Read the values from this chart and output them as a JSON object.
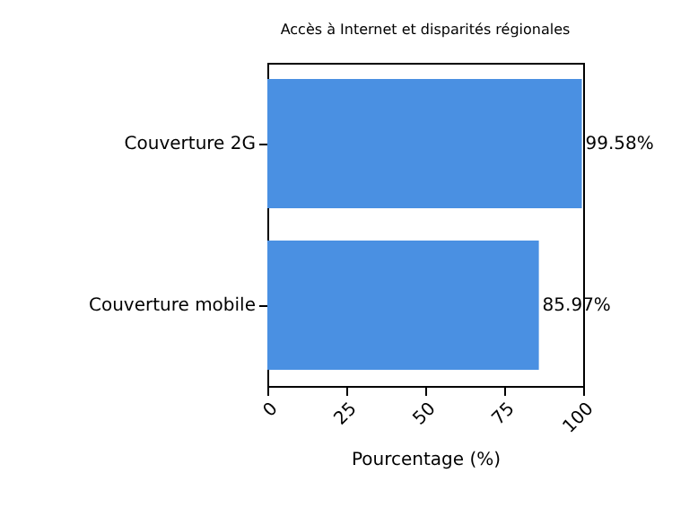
{
  "chart_data": {
    "type": "bar",
    "orientation": "horizontal",
    "title": "Accès à Internet et disparités régionales",
    "xlabel": "Pourcentage (%)",
    "categories": [
      "Couverture 2G",
      "Couverture mobile"
    ],
    "values": [
      99.58,
      85.97
    ],
    "color": "#4a90e2",
    "value_labels": [
      "99.58%",
      "85.97%"
    ],
    "xlim": [
      0,
      100
    ],
    "xticks": [
      0,
      25,
      50,
      75,
      100
    ],
    "grid": false
  }
}
